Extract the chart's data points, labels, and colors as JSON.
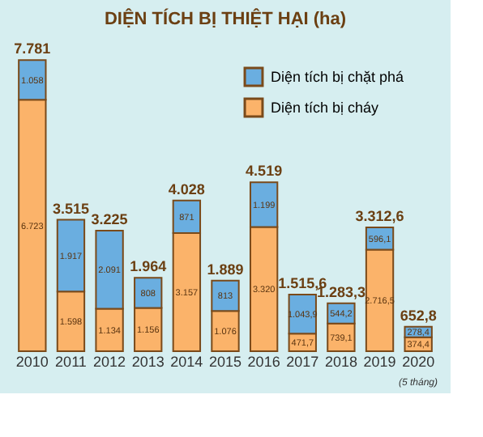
{
  "chart_data": {
    "type": "bar",
    "stacked": true,
    "title": "DIỆN TÍCH BỊ THIỆT HẠI (ha)",
    "categories": [
      "2010",
      "2011",
      "2012",
      "2013",
      "2014",
      "2015",
      "2016",
      "2017",
      "2018",
      "2019",
      "2020"
    ],
    "series": [
      {
        "name": "Diện tích bị cháy",
        "color": "#fbb36a",
        "values": [
          6723,
          1598,
          1134,
          1156,
          3157,
          1076,
          3320,
          471.7,
          739.1,
          2716.5,
          374.4
        ],
        "value_labels": [
          "6.723",
          "1.598",
          "1.134",
          "1.156",
          "3.157",
          "1.076",
          "3.320",
          "471,7",
          "739,1",
          "2.716,5",
          "374,4"
        ]
      },
      {
        "name": "Diện tích bị chặt phá",
        "color": "#6aaee0",
        "values": [
          1058,
          1917,
          2091,
          808,
          871,
          813,
          1199,
          1043.9,
          544.2,
          596.1,
          278.4
        ],
        "value_labels": [
          "1.058",
          "1.917",
          "2.091",
          "808",
          "871",
          "813",
          "1.199",
          "1.043,9",
          "544,2",
          "596,1",
          "278,4"
        ]
      }
    ],
    "totals": [
      "7.781",
      "3.515",
      "3.225",
      "1.964",
      "4.028",
      "1.889",
      "4.519",
      "1.515,6",
      "1.283,3",
      "3.312,6",
      "652,8"
    ],
    "annotations": [
      "(5 tháng)"
    ],
    "tick_labels": "x",
    "legend": "top right"
  }
}
